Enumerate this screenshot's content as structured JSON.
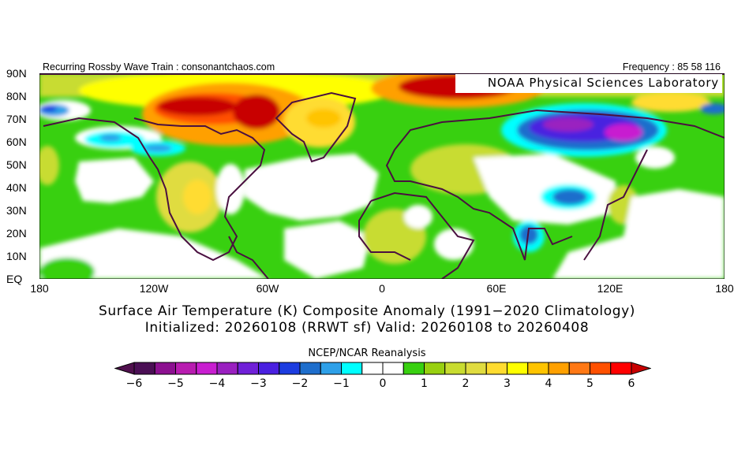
{
  "header": {
    "left_text": "Recurring Rossby Wave Train : consonantchaos.com",
    "right_text": "Frequency : 85 58 116",
    "watermark": "NOAA Physical Sciences Laboratory"
  },
  "axes": {
    "lat_labels": [
      "90N",
      "80N",
      "70N",
      "60N",
      "50N",
      "40N",
      "30N",
      "20N",
      "10N",
      "EQ"
    ],
    "lon_labels": [
      "180",
      "120W",
      "60W",
      "0",
      "60E",
      "120E",
      "180"
    ]
  },
  "titles": {
    "line1": "Surface Air Temperature (K) Composite Anomaly (1991−2020 Climatology)",
    "line2": "Initialized: 20260108 (RRWT sf) Valid: 20260108 to 20260408"
  },
  "colorbar": {
    "title": "NCEP/NCAR Reanalysis",
    "labels": [
      "−6",
      "−5",
      "−4",
      "−3",
      "−2",
      "−1",
      "0",
      "1",
      "2",
      "3",
      "4",
      "5",
      "6"
    ],
    "interval_K": 0.5,
    "colors": [
      "#4b0f55",
      "#8c1090",
      "#b81cb0",
      "#c81ed0",
      "#9a20c0",
      "#7020d8",
      "#4a20e0",
      "#1c3ce0",
      "#1e6ecc",
      "#2ea0e8",
      "#00ffff",
      "#ffffff",
      "#ffffff",
      "#38d010",
      "#98d010",
      "#c8dc30",
      "#e0dc40",
      "#ffdc30",
      "#ffff00",
      "#ffc400",
      "#ffa000",
      "#ff7814",
      "#ff5000",
      "#ff0000"
    ],
    "under_color": "#50104e",
    "over_color": "#c80000"
  }
}
